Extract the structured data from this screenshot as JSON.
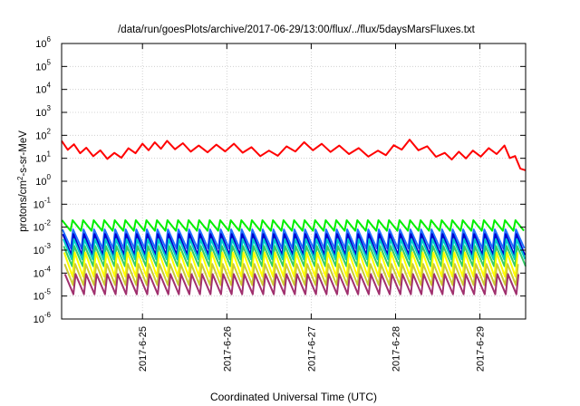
{
  "chart_data": {
    "type": "line",
    "title": "/data/run/goesPlots/archive/2017-06-29/13:00/flux/../flux/5daysMarsFluxes.txt",
    "xlabel": "Coordinated Universal Time (UTC)",
    "ylabel": "protons/cm2-s-sr-MeV",
    "ylabel_parts": [
      "protons/cm",
      "2",
      "-s-sr-MeV"
    ],
    "y_scale": "log",
    "ylim": [
      1e-06,
      1000000.0
    ],
    "y_ticks": [
      {
        "value": 1e-06,
        "base": "10",
        "exp": "-6"
      },
      {
        "value": 1e-05,
        "base": "10",
        "exp": "-5"
      },
      {
        "value": 0.0001,
        "base": "10",
        "exp": "-4"
      },
      {
        "value": 0.001,
        "base": "10",
        "exp": "-3"
      },
      {
        "value": 0.01,
        "base": "10",
        "exp": "-2"
      },
      {
        "value": 0.1,
        "base": "10",
        "exp": "-1"
      },
      {
        "value": 1.0,
        "base": "10",
        "exp": "0"
      },
      {
        "value": 10.0,
        "base": "10",
        "exp": "1"
      },
      {
        "value": 100.0,
        "base": "10",
        "exp": "2"
      },
      {
        "value": 1000.0,
        "base": "10",
        "exp": "3"
      },
      {
        "value": 10000.0,
        "base": "10",
        "exp": "4"
      },
      {
        "value": 100000.0,
        "base": "10",
        "exp": "5"
      },
      {
        "value": 1000000.0,
        "base": "10",
        "exp": "6"
      }
    ],
    "xlim": [
      "2017-06-24T01:00",
      "2017-06-29T13:00"
    ],
    "x_ticks": [
      "2017-6-25",
      "2017-6-26",
      "2017-6-27",
      "2017-6-28",
      "2017-6-29"
    ],
    "x_tick_positions": [
      "2017-06-25T00:00",
      "2017-06-26T00:00",
      "2017-06-27T00:00",
      "2017-06-28T00:00",
      "2017-06-29T00:00"
    ],
    "grid": true,
    "legend": "none",
    "series": [
      {
        "color": "#ff0000",
        "x": [
          "2017-06-24T01:00",
          "2017-06-24T08:00",
          "2017-06-24T16:00",
          "2017-06-25T00:00",
          "2017-06-25T07:00",
          "2017-06-25T16:00",
          "2017-06-26T02:00",
          "2017-06-26T12:00",
          "2017-06-26T22:00",
          "2017-06-27T08:00",
          "2017-06-27T19:00",
          "2017-06-28T04:00",
          "2017-06-28T14:00",
          "2017-06-28T22:00",
          "2017-06-29T07:00",
          "2017-06-29T13:00"
        ],
        "values": [
          40,
          20,
          12,
          30,
          40,
          25,
          30,
          15,
          35,
          25,
          15,
          45,
          12,
          15,
          25,
          3
        ]
      },
      {
        "color": "#00ee00",
        "x_start": "2017-06-24T01:00",
        "x_end": "2017-06-29T13:00",
        "cycles": 44,
        "peak": 0.02,
        "trough": 0.007
      },
      {
        "color": "#1f6fff",
        "x_start": "2017-06-24T01:00",
        "x_end": "2017-06-29T13:00",
        "cycles": 44,
        "peak": 0.008,
        "trough": 0.0012
      },
      {
        "color": "#0000cc",
        "x_start": "2017-06-24T01:00",
        "x_end": "2017-06-29T13:00",
        "cycles": 44,
        "peak": 0.005,
        "trough": 0.0006
      },
      {
        "color": "#00cccc",
        "x_start": "2017-06-24T01:00",
        "x_end": "2017-06-29T13:00",
        "cycles": 44,
        "peak": 0.003,
        "trough": 0.0004
      },
      {
        "color": "#33cc66",
        "x_start": "2017-06-24T01:00",
        "x_end": "2017-06-29T13:00",
        "cycles": 44,
        "peak": 0.0015,
        "trough": 0.0002
      },
      {
        "color": "#ffff00",
        "x_start": "2017-06-24T01:00",
        "x_end": "2017-06-29T13:00",
        "cycles": 44,
        "peak": 0.0008,
        "trough": 7e-05
      },
      {
        "color": "#cccc33",
        "x_start": "2017-06-24T01:00",
        "x_end": "2017-06-29T13:00",
        "cycles": 44,
        "peak": 0.00025,
        "trough": 3e-05
      },
      {
        "color": "#a0306e",
        "x_start": "2017-06-24T01:00",
        "x_end": "2017-06-29T13:00",
        "cycles": 44,
        "peak": 9e-05,
        "trough": 1.2e-05
      }
    ]
  }
}
